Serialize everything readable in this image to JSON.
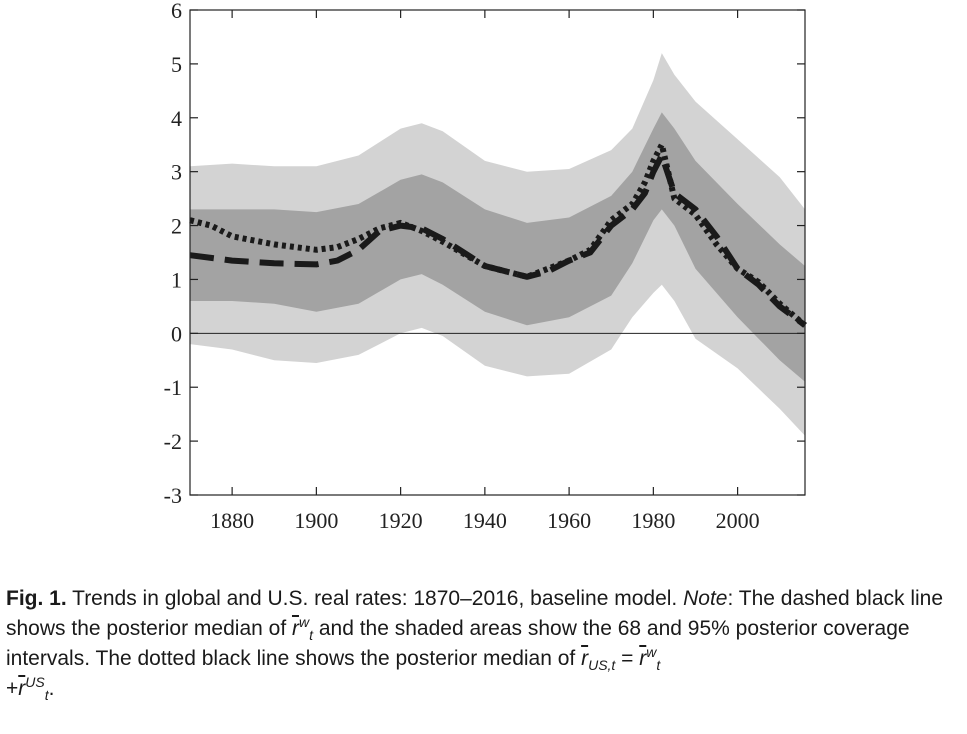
{
  "chart_data": {
    "type": "line",
    "x_ticks": [
      1880,
      1900,
      1920,
      1940,
      1960,
      1980,
      2000
    ],
    "y_ticks": [
      6,
      5,
      4,
      3,
      2,
      1,
      0,
      -1,
      -2,
      -3
    ],
    "xlim": [
      1870,
      2016
    ],
    "ylim": [
      -3,
      6
    ],
    "zero_line": true,
    "grid": false,
    "colors": {
      "band95": "#d3d3d3",
      "band68": "#a3a3a3",
      "line": "#1a1a1a"
    },
    "bands": {
      "x": [
        1870,
        1880,
        1890,
        1900,
        1910,
        1920,
        1925,
        1930,
        1940,
        1950,
        1960,
        1970,
        1975,
        1980,
        1982,
        1985,
        1990,
        2000,
        2010,
        2016
      ],
      "upper95": [
        3.1,
        3.15,
        3.1,
        3.1,
        3.3,
        3.8,
        3.9,
        3.75,
        3.2,
        3.0,
        3.05,
        3.4,
        3.8,
        4.7,
        5.2,
        4.8,
        4.3,
        3.6,
        2.9,
        2.3
      ],
      "upper68": [
        2.3,
        2.3,
        2.3,
        2.25,
        2.4,
        2.85,
        2.95,
        2.8,
        2.3,
        2.05,
        2.15,
        2.55,
        3.0,
        3.8,
        4.1,
        3.8,
        3.2,
        2.4,
        1.65,
        1.25
      ],
      "lower68": [
        0.6,
        0.6,
        0.55,
        0.4,
        0.55,
        1.0,
        1.1,
        0.9,
        0.4,
        0.15,
        0.3,
        0.7,
        1.3,
        2.1,
        2.3,
        2.0,
        1.2,
        0.3,
        -0.5,
        -0.9
      ],
      "lower95": [
        -0.2,
        -0.3,
        -0.5,
        -0.55,
        -0.4,
        0.0,
        0.1,
        -0.05,
        -0.6,
        -0.8,
        -0.75,
        -0.3,
        0.3,
        0.75,
        0.9,
        0.6,
        -0.1,
        -0.65,
        -1.4,
        -1.9
      ]
    },
    "series": [
      {
        "style": "dashed",
        "x": [
          1870,
          1875,
          1880,
          1890,
          1900,
          1905,
          1910,
          1915,
          1920,
          1925,
          1930,
          1940,
          1945,
          1950,
          1955,
          1960,
          1965,
          1970,
          1975,
          1978,
          1980,
          1982,
          1985,
          1990,
          1995,
          2000,
          2005,
          2010,
          2016
        ],
        "y": [
          1.45,
          1.4,
          1.35,
          1.3,
          1.28,
          1.35,
          1.55,
          1.9,
          2.0,
          1.95,
          1.75,
          1.25,
          1.15,
          1.05,
          1.15,
          1.35,
          1.5,
          2.0,
          2.3,
          2.6,
          3.0,
          3.3,
          2.6,
          2.3,
          1.8,
          1.2,
          0.9,
          0.5,
          0.15
        ]
      },
      {
        "style": "dotted",
        "x": [
          1870,
          1875,
          1880,
          1890,
          1900,
          1905,
          1910,
          1915,
          1920,
          1925,
          1930,
          1940,
          1945,
          1950,
          1955,
          1960,
          1965,
          1970,
          1975,
          1978,
          1980,
          1982,
          1985,
          1990,
          1995,
          2000,
          2005,
          2010,
          2016
        ],
        "y": [
          2.1,
          2.0,
          1.8,
          1.65,
          1.55,
          1.6,
          1.75,
          1.95,
          2.05,
          1.9,
          1.7,
          1.25,
          1.15,
          1.05,
          1.2,
          1.35,
          1.55,
          2.1,
          2.4,
          2.8,
          3.2,
          3.5,
          2.5,
          2.2,
          1.65,
          1.2,
          0.95,
          0.55,
          0.15
        ]
      }
    ]
  },
  "caption": {
    "fig_label": "Fig. 1.",
    "text_before_note": " Trends in global and U.S. real rates: 1870–2016, baseline model. ",
    "note_label": "Note",
    "text_after_note": ": The dashed black line shows the posterior median of ",
    "sym_w_base": "r",
    "sym_w_sup": "w",
    "sym_w_sub": "t",
    "text_mid": " and the shaded areas show the 68 and 95% posterior coverage intervals. The dotted black line shows the posterior median of ",
    "sym_us_base": "r",
    "sym_us_sub": "US,t",
    "equals": " = ",
    "sym_w2_base": "r",
    "sym_w2_sup": "w",
    "sym_w2_sub": "t",
    "plus": "+",
    "sym_t_base": "r",
    "sym_t_sup": "US",
    "sym_t_sub": "t",
    "end": "."
  }
}
